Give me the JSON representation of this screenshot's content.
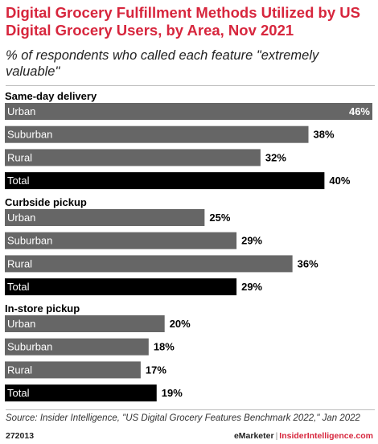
{
  "header": {
    "title": "Digital Grocery Fulfillment Methods Utilized by US Digital Grocery Users, by Area, Nov 2021",
    "subtitle": "% of respondents who called each feature \"extremely valuable\""
  },
  "chart_data": {
    "type": "bar",
    "orientation": "horizontal",
    "unit": "%",
    "xlim": [
      0,
      46
    ],
    "groups": [
      {
        "name": "Same-day delivery",
        "categories": [
          "Urban",
          "Suburban",
          "Rural",
          "Total"
        ],
        "values": [
          46,
          38,
          32,
          40
        ]
      },
      {
        "name": "Curbside pickup",
        "categories": [
          "Urban",
          "Suburban",
          "Rural",
          "Total"
        ],
        "values": [
          25,
          29,
          36,
          29
        ]
      },
      {
        "name": "In-store pickup",
        "categories": [
          "Urban",
          "Suburban",
          "Rural",
          "Total"
        ],
        "values": [
          20,
          18,
          17,
          19
        ]
      }
    ],
    "colors": {
      "category": "#666666",
      "total": "#000000",
      "label_text": "#ffffff"
    }
  },
  "footer": {
    "source": "Source: Insider Intelligence, \"US Digital Grocery Features Benchmark 2022,\" Jan 2022",
    "chart_id": "272013",
    "brand_a": "eMarketer",
    "brand_sep": "|",
    "brand_b": "InsiderIntelligence.com"
  }
}
